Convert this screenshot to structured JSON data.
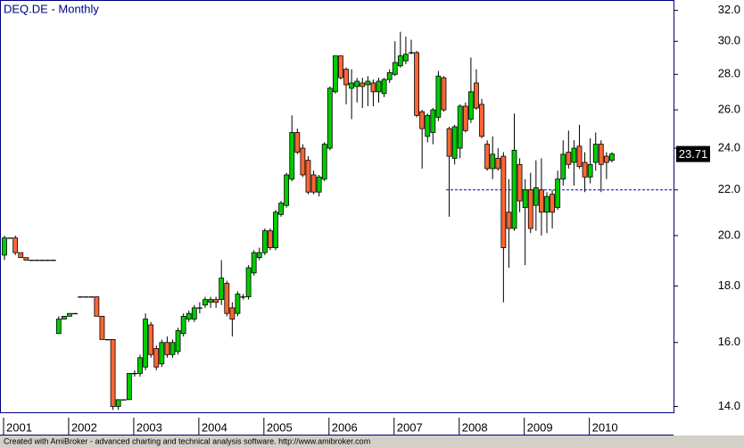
{
  "chart_data": {
    "type": "candlestick",
    "title": "DEQ.DE - Monthly",
    "footer": "Created with AmiBroker - advanced charting and technical analysis software. http://www.amibroker.com",
    "categories": [
      "2001",
      null,
      null,
      null,
      null,
      null,
      null,
      null,
      null,
      null,
      null,
      null,
      "2002",
      null,
      null,
      null,
      null,
      null,
      null,
      null,
      null,
      null,
      null,
      null,
      "2003",
      null,
      null,
      null,
      null,
      null,
      null,
      null,
      null,
      null,
      null,
      null,
      "2004",
      null,
      null,
      null,
      null,
      null,
      null,
      null,
      null,
      null,
      null,
      null,
      "2005",
      null,
      null,
      null,
      null,
      null,
      null,
      null,
      null,
      null,
      null,
      null,
      "2006",
      null,
      null,
      null,
      null,
      null,
      null,
      null,
      null,
      null,
      null,
      null,
      "2007",
      null,
      null,
      null,
      null,
      null,
      null,
      null,
      null,
      null,
      null,
      null,
      "2008",
      null,
      null,
      null,
      null,
      null,
      null,
      null,
      null,
      null,
      null,
      null,
      "2009",
      null,
      null,
      null,
      null,
      null,
      null,
      null,
      null,
      null,
      null,
      null,
      "2010",
      null,
      null,
      null,
      null
    ],
    "open": [
      19.2,
      19.9,
      19.9,
      19.3,
      19.1,
      19.0,
      19.0,
      19.0,
      19.0,
      19.0,
      16.3,
      16.8,
      16.9,
      17.0,
      17.6,
      17.6,
      17.6,
      17.6,
      16.9,
      16.1,
      16.1,
      14.0,
      14.2,
      14.2,
      15.0,
      15.0,
      15.2,
      16.6,
      15.8,
      15.3,
      16.0,
      15.6,
      15.7,
      16.3,
      16.8,
      16.8,
      17.2,
      17.3,
      17.4,
      17.5,
      17.5,
      18.1,
      17.2,
      17.0,
      17.6,
      17.6,
      18.5,
      19.1,
      19.3,
      20.2,
      19.5,
      20.9,
      21.3,
      22.5,
      24.8,
      24.0,
      23.4,
      22.7,
      21.9,
      22.5,
      24.0,
      27.0,
      29.1,
      28.3,
      27.2,
      27.3,
      27.5,
      27.4,
      27.5,
      27.0,
      26.9,
      27.7,
      28.0,
      28.5,
      28.8,
      29.3,
      29.3,
      25.9,
      24.6,
      24.8,
      25.6,
      27.8,
      25.0,
      23.5,
      24.0,
      26.2,
      25.5,
      27.5,
      26.3,
      24.2,
      23.0,
      23.5,
      23.6,
      21.0,
      20.3,
      23.2,
      21.2,
      22.0,
      21.3,
      22.0,
      21.0,
      21.8,
      21.2,
      22.5,
      23.8,
      23.3,
      24.1,
      23.3,
      22.6,
      23.3,
      24.2,
      23.6,
      23.4
    ],
    "high": [
      20.0,
      19.9,
      20.0,
      19.3,
      19.1,
      19.0,
      19.0,
      19.0,
      19.0,
      19.0,
      16.9,
      16.9,
      17.0,
      17.0,
      17.6,
      17.6,
      17.6,
      17.6,
      16.9,
      16.1,
      16.1,
      14.2,
      14.2,
      15.0,
      15.1,
      15.6,
      17.0,
      16.7,
      15.9,
      16.1,
      16.2,
      16.1,
      16.5,
      17.0,
      17.1,
      17.3,
      17.4,
      17.6,
      17.6,
      17.6,
      19.0,
      18.2,
      17.4,
      17.8,
      17.7,
      18.8,
      19.4,
      19.5,
      20.3,
      20.3,
      21.1,
      21.5,
      22.8,
      25.7,
      25.0,
      24.2,
      23.6,
      22.9,
      22.7,
      24.3,
      27.3,
      29.1,
      29.1,
      28.4,
      28.3,
      27.8,
      27.8,
      27.9,
      27.7,
      27.8,
      27.8,
      28.3,
      30.0,
      30.6,
      30.3,
      30.1,
      29.4,
      26.0,
      25.8,
      26.1,
      28.2,
      27.9,
      25.1,
      25.2,
      26.3,
      26.4,
      29.0,
      28.3,
      26.6,
      24.4,
      24.6,
      24.0,
      23.8,
      22.5,
      25.8,
      23.5,
      22.5,
      22.8,
      23.4,
      23.5,
      21.9,
      22.0,
      22.9,
      24.4,
      24.9,
      24.4,
      25.2,
      23.8,
      24.5,
      24.8,
      24.4,
      23.8,
      23.8
    ],
    "low": [
      19.0,
      19.9,
      19.2,
      19.1,
      19.0,
      19.0,
      19.0,
      19.0,
      19.0,
      19.0,
      16.3,
      16.8,
      16.9,
      17.0,
      17.6,
      17.6,
      17.6,
      16.9,
      16.1,
      16.1,
      13.9,
      13.9,
      14.2,
      14.2,
      14.9,
      14.9,
      15.1,
      15.5,
      15.1,
      15.2,
      15.5,
      15.5,
      15.6,
      16.2,
      16.7,
      16.7,
      17.0,
      17.2,
      17.2,
      17.2,
      17.3,
      16.9,
      16.2,
      16.9,
      17.5,
      17.5,
      18.4,
      19.0,
      19.2,
      19.4,
      19.4,
      20.8,
      21.2,
      22.4,
      23.7,
      22.6,
      21.8,
      21.8,
      21.7,
      22.4,
      23.9,
      26.9,
      27.7,
      26.3,
      25.5,
      26.4,
      26.1,
      26.2,
      26.2,
      26.4,
      26.7,
      27.5,
      27.9,
      28.4,
      28.6,
      29.2,
      25.6,
      23.0,
      24.3,
      24.2,
      25.4,
      25.9,
      20.8,
      23.2,
      23.5,
      24.8,
      25.3,
      26.0,
      24.5,
      22.9,
      22.5,
      22.9,
      17.4,
      18.7,
      20.2,
      21.0,
      18.8,
      20.1,
      20.2,
      20.0,
      20.1,
      20.3,
      21.1,
      22.2,
      23.0,
      22.2,
      23.0,
      21.9,
      22.3,
      22.9,
      21.9,
      22.5,
      23.3
    ],
    "close": [
      19.9,
      19.9,
      19.3,
      19.1,
      19.0,
      19.0,
      19.0,
      19.0,
      19.0,
      19.0,
      16.8,
      16.9,
      17.0,
      17.0,
      17.6,
      17.6,
      17.6,
      16.9,
      16.1,
      16.1,
      14.0,
      14.2,
      14.2,
      15.0,
      15.0,
      15.5,
      16.8,
      15.6,
      15.2,
      16.0,
      15.6,
      16.0,
      16.4,
      16.9,
      17.0,
      17.2,
      17.2,
      17.5,
      17.5,
      17.4,
      18.3,
      17.0,
      16.8,
      17.7,
      17.6,
      18.7,
      19.3,
      19.3,
      20.2,
      19.5,
      21.0,
      21.4,
      22.7,
      24.8,
      23.8,
      22.7,
      21.9,
      21.9,
      22.6,
      24.2,
      27.2,
      29.1,
      27.8,
      27.4,
      27.5,
      27.6,
      27.3,
      27.6,
      27.0,
      27.6,
      27.7,
      28.1,
      28.7,
      29.1,
      29.2,
      29.3,
      25.7,
      25.0,
      25.7,
      26.0,
      27.9,
      26.0,
      23.6,
      25.1,
      26.2,
      24.9,
      27.0,
      26.1,
      24.6,
      23.0,
      23.7,
      23.0,
      19.5,
      20.3,
      23.9,
      21.5,
      22.0,
      20.3,
      22.1,
      21.0,
      21.7,
      21.0,
      22.5,
      23.7,
      23.2,
      24.0,
      23.1,
      22.6,
      23.2,
      24.2,
      23.2,
      23.3,
      23.71
    ],
    "up_color": "#00cc00",
    "down_color": "#ff6633",
    "log_scale": true,
    "ylim": [
      13.83,
      32.7
    ],
    "yticks": [
      {
        "value": 14,
        "label": "14.0"
      },
      {
        "value": 16,
        "label": "16.0"
      },
      {
        "value": 18,
        "label": "18.0"
      },
      {
        "value": 20,
        "label": "20.0"
      },
      {
        "value": 22,
        "label": "22.0"
      },
      {
        "value": 24,
        "label": "24.0"
      },
      {
        "value": 26,
        "label": "26.0"
      },
      {
        "value": 28,
        "label": "28.0"
      },
      {
        "value": 30,
        "label": "30.0"
      },
      {
        "value": 32,
        "label": "32.0"
      }
    ],
    "reference_line": {
      "value": 22.0,
      "color": "#0000cc"
    }
  }
}
